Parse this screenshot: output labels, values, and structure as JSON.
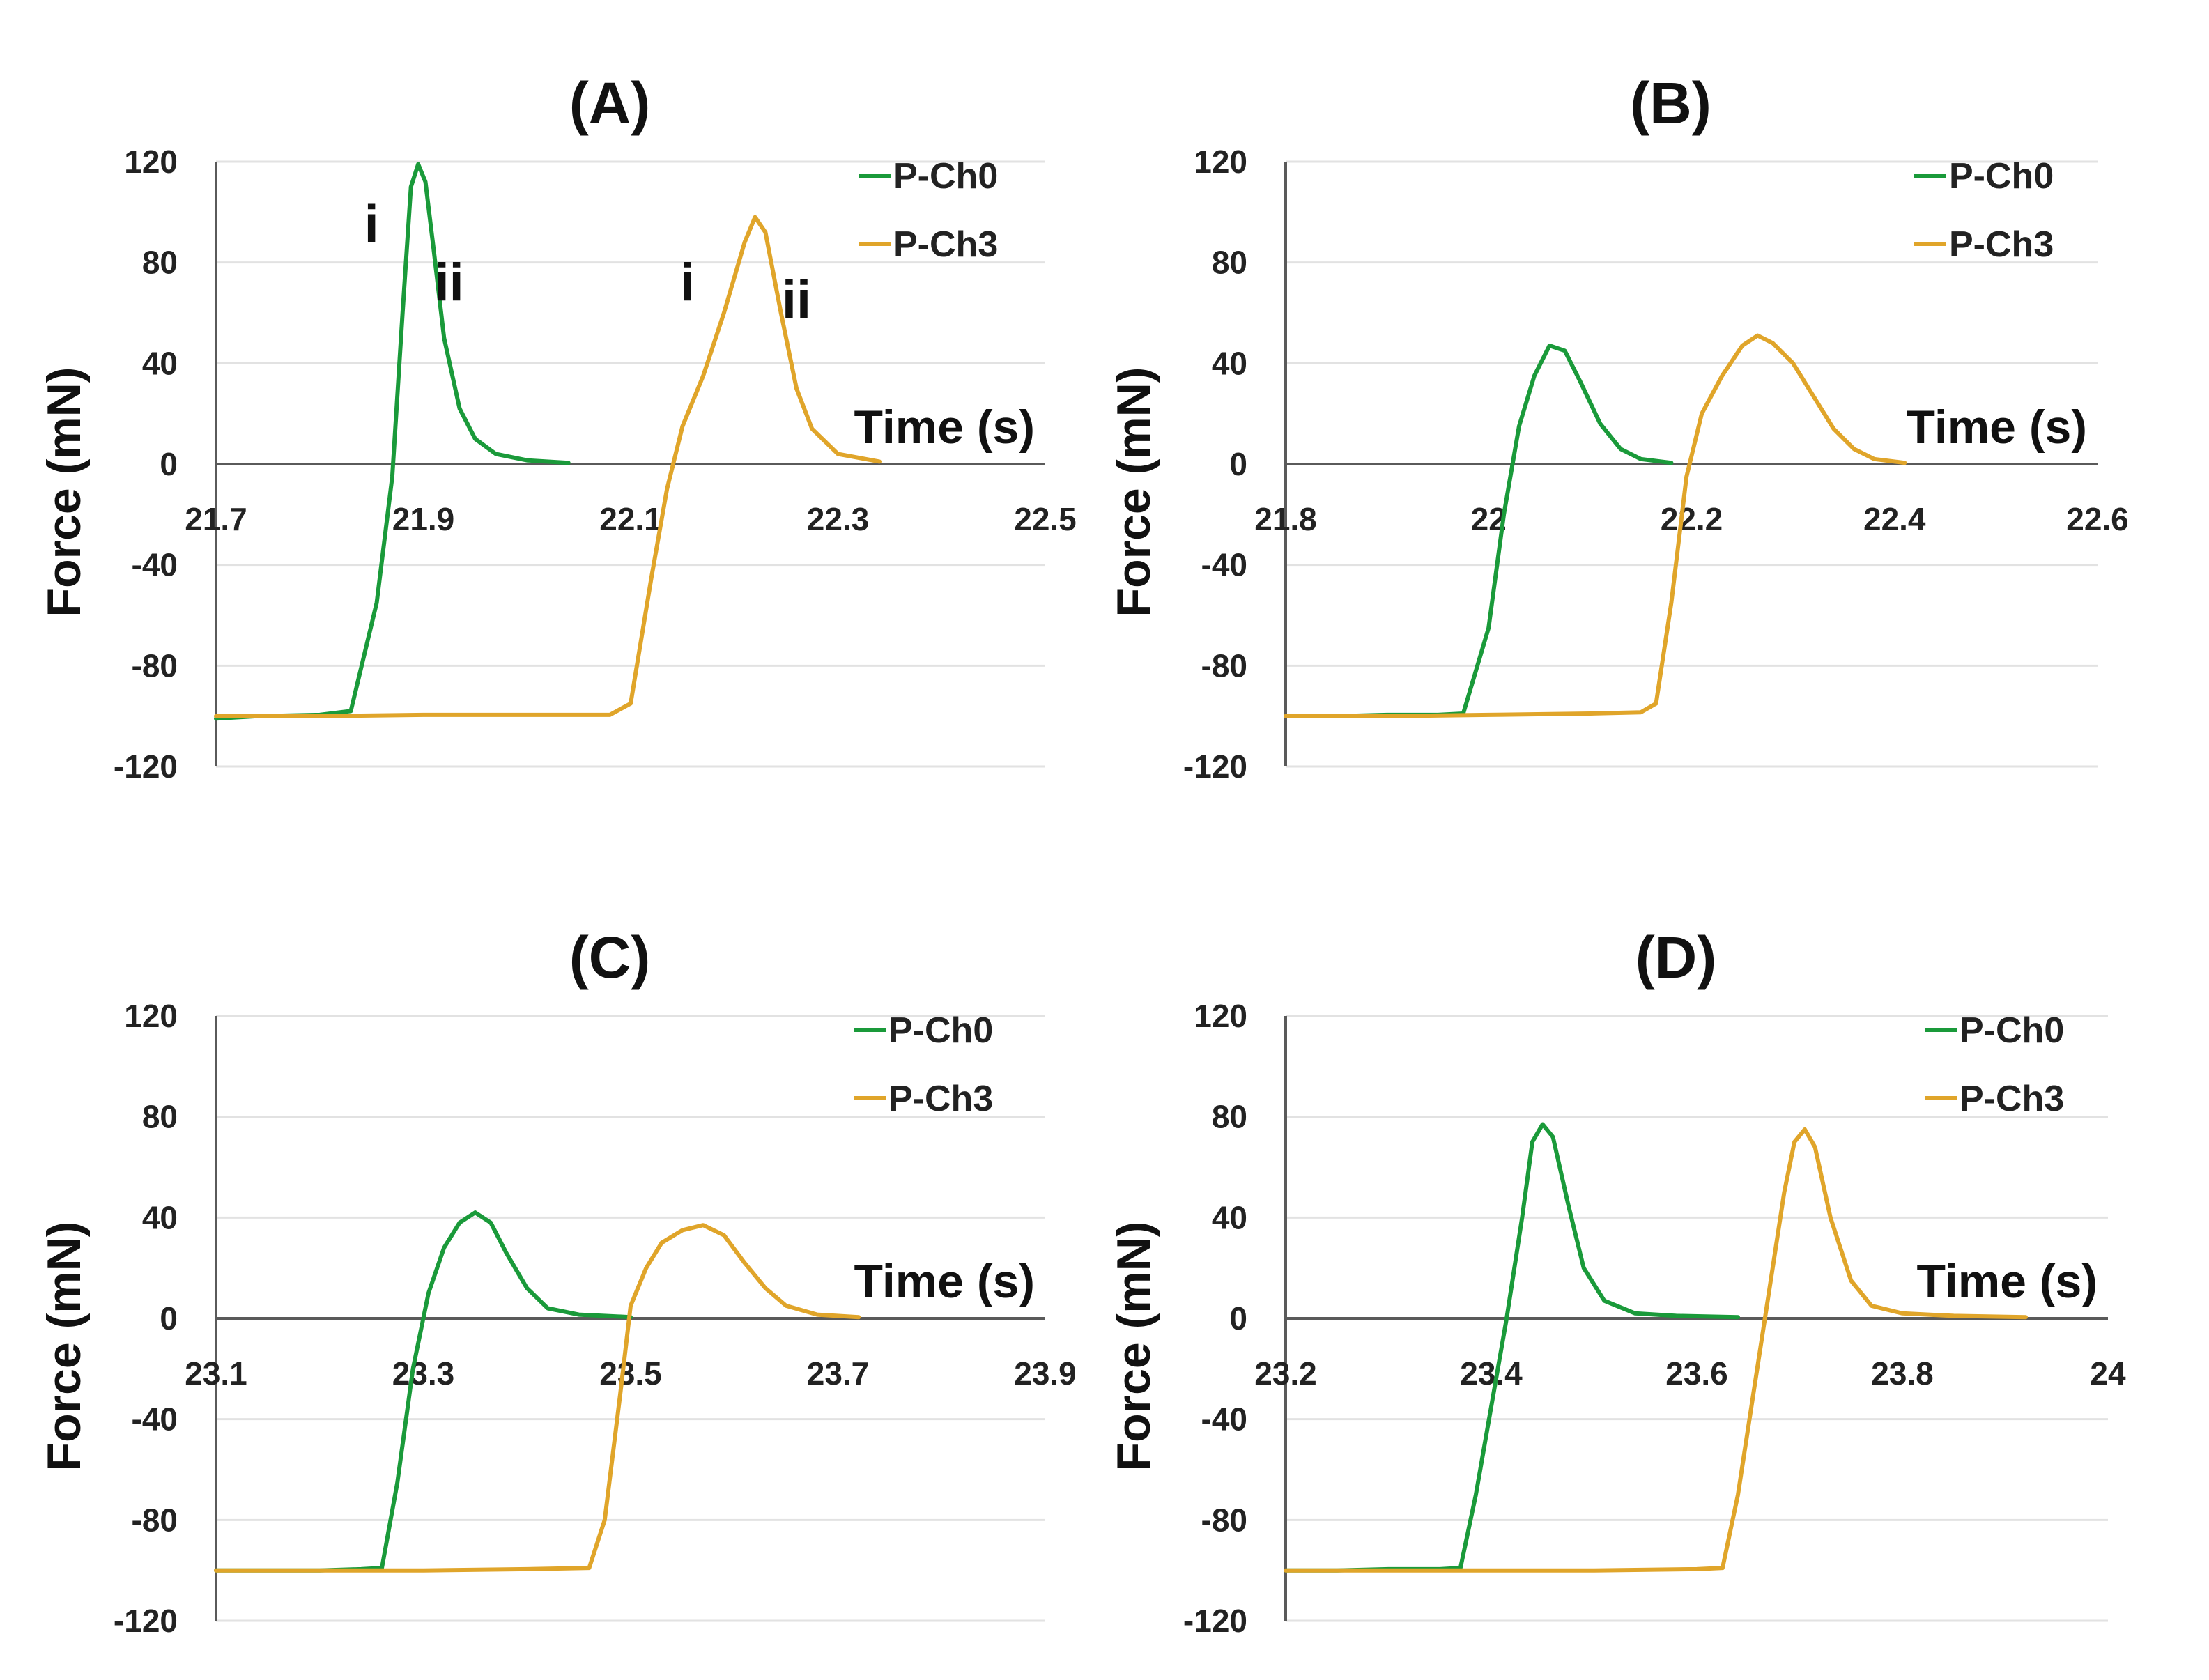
{
  "chart_data": [
    {
      "type": "line",
      "title": "(A)",
      "xlabel": "Time (s)",
      "ylabel": "Force (mN)",
      "xlim": [
        21.7,
        22.5
      ],
      "ylim": [
        -120,
        120
      ],
      "xticks": [
        "21.7",
        "21.9",
        "22.1",
        "22.3",
        "22.5"
      ],
      "yticks": [
        "120",
        "80",
        "40",
        "0",
        "-40",
        "-80",
        "-120"
      ],
      "legend_position": "top-right",
      "annotations": [
        {
          "text": "i",
          "x": 21.85,
          "y": 88
        },
        {
          "text": "ii",
          "x": 21.925,
          "y": 65
        },
        {
          "text": "i",
          "x": 22.155,
          "y": 65
        },
        {
          "text": "ii",
          "x": 22.26,
          "y": 58
        }
      ],
      "series": [
        {
          "name": "P-Ch0",
          "color": "#1a9a3a",
          "x": [
            21.7,
            21.74,
            21.8,
            21.83,
            21.855,
            21.87,
            21.88,
            21.888,
            21.895,
            21.902,
            21.91,
            21.92,
            21.935,
            21.95,
            21.97,
            22.0,
            22.04
          ],
          "y": [
            -101,
            -100,
            -99.5,
            -98,
            -55,
            -5,
            60,
            110,
            119,
            112,
            85,
            50,
            22,
            10,
            4,
            1.5,
            0.5
          ]
        },
        {
          "name": "P-Ch3",
          "color": "#e0a52a",
          "x": [
            21.7,
            21.8,
            21.9,
            22.0,
            22.08,
            22.1,
            22.12,
            22.135,
            22.15,
            22.17,
            22.19,
            22.21,
            22.22,
            22.23,
            22.245,
            22.26,
            22.275,
            22.3,
            22.34
          ],
          "y": [
            -100,
            -100,
            -99.5,
            -99.5,
            -99.5,
            -95,
            -45,
            -10,
            15,
            35,
            60,
            88,
            98,
            92,
            60,
            30,
            14,
            4,
            1
          ]
        }
      ]
    },
    {
      "type": "line",
      "title": "(B)",
      "xlabel": "Time (s)",
      "ylabel": "Force (mN)",
      "xlim": [
        21.8,
        22.6
      ],
      "ylim": [
        -120,
        120
      ],
      "xticks": [
        "21.8",
        "22",
        "22.2",
        "22.4",
        "22.6"
      ],
      "yticks": [
        "120",
        "80",
        "40",
        "0",
        "-40",
        "-80",
        "-120"
      ],
      "legend_position": "top-right",
      "annotations": [],
      "series": [
        {
          "name": "P-Ch0",
          "color": "#1a9a3a",
          "x": [
            21.8,
            21.85,
            21.9,
            21.95,
            21.975,
            22.0,
            22.015,
            22.03,
            22.045,
            22.06,
            22.075,
            22.09,
            22.11,
            22.13,
            22.15,
            22.18
          ],
          "y": [
            -100,
            -100,
            -99.5,
            -99.5,
            -99,
            -65,
            -20,
            15,
            35,
            47,
            45,
            33,
            16,
            6,
            2,
            0.5
          ]
        },
        {
          "name": "P-Ch3",
          "color": "#e0a52a",
          "x": [
            21.8,
            21.9,
            22.0,
            22.1,
            22.15,
            22.165,
            22.18,
            22.195,
            22.21,
            22.23,
            22.25,
            22.265,
            22.28,
            22.3,
            22.32,
            22.34,
            22.36,
            22.38,
            22.41
          ],
          "y": [
            -100,
            -100,
            -99.5,
            -99,
            -98.5,
            -95,
            -55,
            -5,
            20,
            35,
            47,
            51,
            48,
            40,
            27,
            14,
            6,
            2,
            0.5
          ]
        }
      ]
    },
    {
      "type": "line",
      "title": "(C)",
      "xlabel": "Time (s)",
      "ylabel": "Force (mN)",
      "xlim": [
        23.1,
        23.9
      ],
      "ylim": [
        -120,
        120
      ],
      "xticks": [
        "23.1",
        "23.3",
        "23.5",
        "23.7",
        "23.9"
      ],
      "yticks": [
        "120",
        "80",
        "40",
        "0",
        "-40",
        "-80",
        "-120"
      ],
      "legend_position": "top-right",
      "annotations": [],
      "series": [
        {
          "name": "P-Ch0",
          "color": "#1a9a3a",
          "x": [
            23.1,
            23.15,
            23.2,
            23.24,
            23.26,
            23.275,
            23.29,
            23.305,
            23.32,
            23.335,
            23.35,
            23.365,
            23.38,
            23.4,
            23.42,
            23.45,
            23.5
          ],
          "y": [
            -100,
            -100,
            -100,
            -99.5,
            -99,
            -65,
            -20,
            10,
            28,
            38,
            42,
            38,
            26,
            12,
            4,
            1.5,
            0.5
          ]
        },
        {
          "name": "P-Ch3",
          "color": "#e0a52a",
          "x": [
            23.1,
            23.2,
            23.3,
            23.4,
            23.46,
            23.475,
            23.49,
            23.5,
            23.515,
            23.53,
            23.55,
            23.57,
            23.59,
            23.61,
            23.63,
            23.65,
            23.68,
            23.72
          ],
          "y": [
            -100,
            -100,
            -100,
            -99.5,
            -99,
            -80,
            -30,
            5,
            20,
            30,
            35,
            37,
            33,
            22,
            12,
            5,
            1.5,
            0.5
          ]
        }
      ]
    },
    {
      "type": "line",
      "title": "(D)",
      "xlabel": "Time (s)",
      "ylabel": "Force (mN)",
      "xlim": [
        23.2,
        24.0
      ],
      "ylim": [
        -120,
        120
      ],
      "xticks": [
        "23.2",
        "23.4",
        "23.6",
        "23.8",
        "24"
      ],
      "yticks": [
        "120",
        "80",
        "40",
        "0",
        "-40",
        "-80",
        "-120"
      ],
      "legend_position": "top-right",
      "annotations": [],
      "series": [
        {
          "name": "P-Ch0",
          "color": "#1a9a3a",
          "x": [
            23.2,
            23.25,
            23.3,
            23.35,
            23.37,
            23.385,
            23.4,
            23.415,
            23.43,
            23.44,
            23.45,
            23.46,
            23.475,
            23.49,
            23.51,
            23.54,
            23.58,
            23.64
          ],
          "y": [
            -100,
            -100,
            -99.5,
            -99.5,
            -99,
            -70,
            -35,
            0,
            40,
            70,
            77,
            72,
            45,
            20,
            7,
            2,
            1,
            0.5
          ]
        },
        {
          "name": "P-Ch3",
          "color": "#e0a52a",
          "x": [
            23.2,
            23.3,
            23.4,
            23.5,
            23.6,
            23.625,
            23.64,
            23.655,
            23.67,
            23.685,
            23.695,
            23.705,
            23.715,
            23.73,
            23.75,
            23.77,
            23.8,
            23.85,
            23.92
          ],
          "y": [
            -100,
            -100,
            -100,
            -100,
            -99.5,
            -99,
            -70,
            -30,
            10,
            50,
            70,
            75,
            68,
            40,
            15,
            5,
            2,
            1,
            0.5
          ]
        }
      ]
    }
  ]
}
